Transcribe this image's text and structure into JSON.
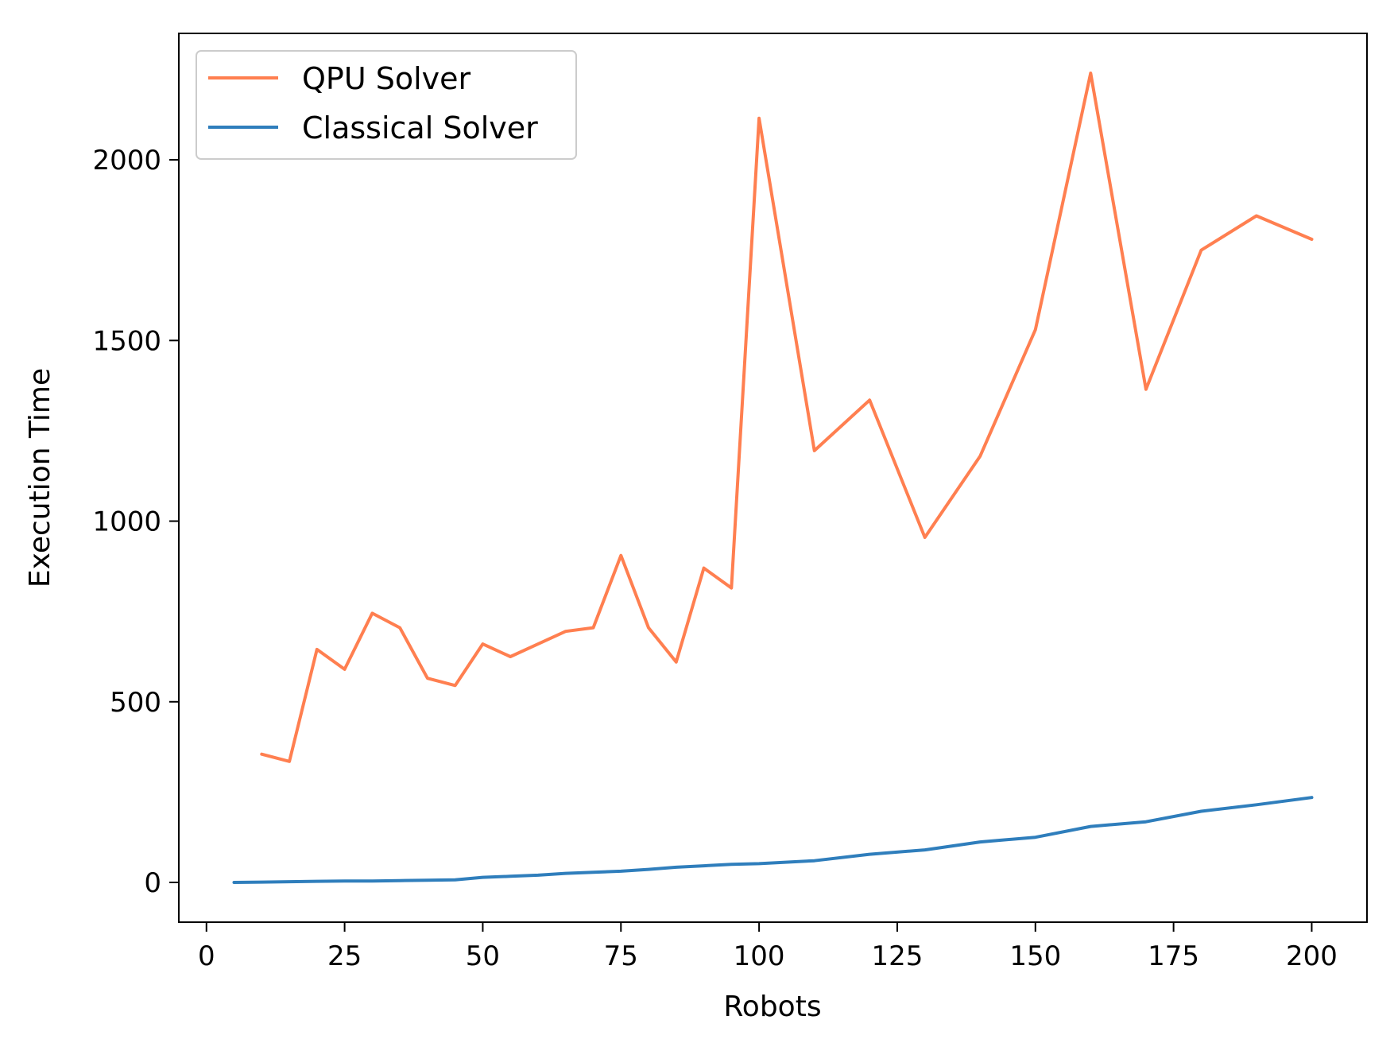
{
  "chart_data": {
    "type": "line",
    "title": "",
    "xlabel": "Robots",
    "ylabel": "Execution Time",
    "xlim": [
      -5,
      210
    ],
    "ylim": [
      -110,
      2350
    ],
    "xticks": [
      0,
      25,
      50,
      75,
      100,
      125,
      150,
      175,
      200
    ],
    "yticks": [
      0,
      500,
      1000,
      1500,
      2000
    ],
    "grid": false,
    "legend_position": "top-left",
    "series": [
      {
        "name": "QPU Solver",
        "color": "#ff7f50",
        "x": [
          10,
          15,
          20,
          25,
          30,
          35,
          40,
          45,
          50,
          55,
          60,
          65,
          70,
          75,
          80,
          85,
          90,
          95,
          100,
          110,
          120,
          130,
          140,
          150,
          160,
          170,
          180,
          190,
          200
        ],
        "y": [
          355,
          335,
          645,
          590,
          745,
          705,
          565,
          545,
          660,
          625,
          660,
          695,
          705,
          905,
          705,
          610,
          870,
          815,
          2115,
          1195,
          1335,
          955,
          1180,
          1530,
          2240,
          1365,
          1750,
          1845,
          1780
        ]
      },
      {
        "name": "Classical Solver",
        "color": "#2f7ebc",
        "x": [
          5,
          10,
          15,
          20,
          25,
          30,
          35,
          40,
          45,
          50,
          55,
          60,
          65,
          70,
          75,
          80,
          85,
          90,
          95,
          100,
          110,
          120,
          130,
          140,
          150,
          160,
          170,
          180,
          190,
          200
        ],
        "y": [
          0,
          1,
          2,
          3,
          4,
          4,
          5,
          6,
          7,
          14,
          17,
          20,
          25,
          28,
          31,
          36,
          42,
          46,
          50,
          52,
          60,
          78,
          90,
          112,
          125,
          155,
          168,
          197,
          215,
          235
        ]
      }
    ]
  }
}
